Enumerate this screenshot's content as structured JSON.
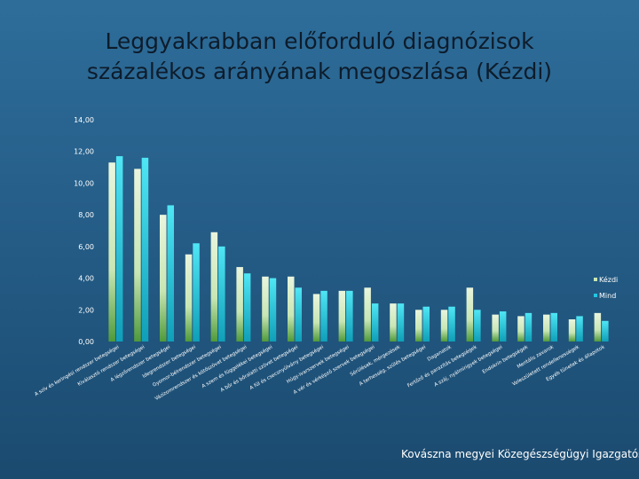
{
  "title": {
    "line1": "Leggyakrabban előforduló diagnózisok",
    "line2": "százalékos arányának megoszlása (Kézdi)"
  },
  "footer": "Kovászna megyei Közegészségügyi Igazgatóság",
  "colors": {
    "kezdi": "#c8e6b4",
    "mind": "#21c7e0",
    "text": "#ffffff"
  },
  "chart_data": {
    "type": "bar",
    "ylim": [
      0,
      14
    ],
    "yticks": [
      "0,00",
      "2,00",
      "4,00",
      "6,00",
      "8,00",
      "10,00",
      "12,00",
      "14,00"
    ],
    "legend_position": "right",
    "categories": [
      "A szív és keringési rendszer betegségei",
      "Kiválasztó rendszer betegségei",
      "A légzőrendszer betegségei",
      "Idegrendszer betegségei",
      "Gyomor-bélrendszer betegségei",
      "Vázizomrendszer és kötőszövet betegségei",
      "A szem és függelékei betegségei",
      "A bőr és bőralatti szövet betegségei",
      "A fül és csecsnyúlvány betegségei",
      "Húgy-ivarszervek betegségei",
      "A vér és vérképző szervek betegségei",
      "Sérülések, mérgezések",
      "A terhesség, szülés betegségei",
      "Daganatok",
      "Fertőző és parazitás betegségek",
      "A száj, nyálmirigyek betegségei",
      "Endokrin betegségek",
      "Mentális zavarok",
      "Veleszületett rendellenességek",
      "Egyéb tünetek és állapotok"
    ],
    "series": [
      {
        "name": "Kézdi",
        "values": [
          11.3,
          10.9,
          8.0,
          5.5,
          6.9,
          4.7,
          4.1,
          4.1,
          3.0,
          3.2,
          3.4,
          2.4,
          2.0,
          2.0,
          3.4,
          1.7,
          1.6,
          1.7,
          1.4,
          1.8
        ]
      },
      {
        "name": "Mind",
        "values": [
          11.7,
          11.6,
          8.6,
          6.2,
          6.0,
          4.3,
          4.0,
          3.4,
          3.2,
          3.2,
          2.4,
          2.4,
          2.2,
          2.2,
          2.0,
          1.9,
          1.8,
          1.8,
          1.6,
          1.3
        ]
      }
    ]
  }
}
